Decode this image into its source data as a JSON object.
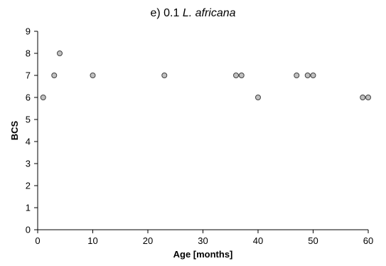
{
  "chart_data": {
    "type": "scatter",
    "title_prefix": "e) 0.1 ",
    "title_species": "L. africana",
    "xlabel": "Age [months]",
    "ylabel": "BCS",
    "xlim": [
      0,
      60
    ],
    "ylim": [
      0,
      9
    ],
    "xticks": [
      0,
      10,
      20,
      30,
      40,
      50,
      60
    ],
    "yticks": [
      0,
      1,
      2,
      3,
      4,
      5,
      6,
      7,
      8,
      9
    ],
    "grid": false,
    "marker_fill": "#c0c0c0",
    "marker_edge": "#404040",
    "points": [
      {
        "x": 1,
        "y": 6
      },
      {
        "x": 3,
        "y": 7
      },
      {
        "x": 4,
        "y": 8
      },
      {
        "x": 10,
        "y": 7
      },
      {
        "x": 23,
        "y": 7
      },
      {
        "x": 36,
        "y": 7
      },
      {
        "x": 37,
        "y": 7
      },
      {
        "x": 40,
        "y": 6
      },
      {
        "x": 47,
        "y": 7
      },
      {
        "x": 49,
        "y": 7
      },
      {
        "x": 50,
        "y": 7
      },
      {
        "x": 59,
        "y": 6
      },
      {
        "x": 60,
        "y": 6
      }
    ]
  }
}
